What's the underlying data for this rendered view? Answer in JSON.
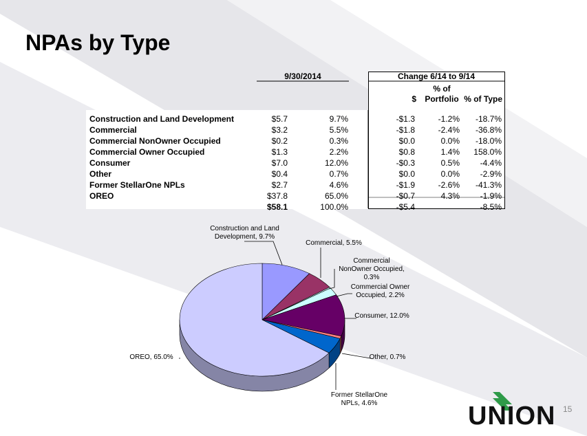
{
  "title": "NPAs by Type",
  "table": {
    "group_headers": [
      "9/30/2014",
      "Change 6/14 to 9/14"
    ],
    "column_headers": [
      "$",
      "% of Portfolio",
      "% of Type"
    ],
    "rows": [
      [
        "Construction and Land Development",
        "$5.7",
        "9.7%",
        "-$1.3",
        "-1.2%",
        "-18.7%"
      ],
      [
        "Commercial",
        "$3.2",
        "5.5%",
        "-$1.8",
        "-2.4%",
        "-36.8%"
      ],
      [
        "Commercial NonOwner Occupied",
        "$0.2",
        "0.3%",
        "$0.0",
        "0.0%",
        "-18.0%"
      ],
      [
        "Commercial Owner Occupied",
        "$1.3",
        "2.2%",
        "$0.8",
        "1.4%",
        "158.0%"
      ],
      [
        "Consumer",
        "$7.0",
        "12.0%",
        "-$0.3",
        "0.5%",
        "-4.4%"
      ],
      [
        "Other",
        "$0.4",
        "0.7%",
        "$0.0",
        "0.0%",
        "-2.9%"
      ],
      [
        "Former StellarOne NPLs",
        "$2.7",
        "4.6%",
        "-$1.9",
        "-2.6%",
        "-41.3%"
      ],
      [
        "OREO",
        "$37.8",
        "65.0%",
        "-$0.7",
        "4.3%",
        "-1.9%"
      ]
    ],
    "total": {
      "amount": "$58.1",
      "pct": "100.0%",
      "change": "-$5.4",
      "change_type": "-8.5%"
    }
  },
  "chart_data": {
    "type": "pie",
    "values": [
      9.7,
      5.5,
      0.3,
      2.2,
      12.0,
      0.7,
      4.6,
      65.0
    ],
    "value_labels": [
      "Construction and Land Development, 9.7%",
      "Commercial, 5.5%",
      "Commercial NonOwner Occupied, 0.3%",
      "Commercial Owner Occupied, 2.2%",
      "Consumer, 12.0%",
      "Other, 0.7%",
      "Former StellarOne NPLs, 4.6%",
      "OREO, 65.0%"
    ],
    "colors": [
      "#9999ff",
      "#993366",
      "#ccffff",
      "#ccffff",
      "#660066",
      "#ff8080",
      "#0066cc",
      "#ccccff"
    ]
  },
  "logo": "UNION",
  "page_number": "15"
}
